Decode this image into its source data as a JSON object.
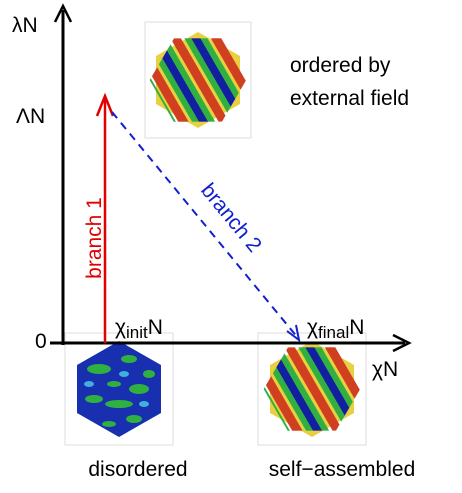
{
  "axes": {
    "y_label": "λN",
    "x_label": "χN",
    "origin": "0",
    "lambda_mark": "ΛN"
  },
  "points": {
    "init": {
      "symbol": "χ",
      "subscript": "init",
      "suffix": "N"
    },
    "final": {
      "symbol": "χ",
      "subscript": "final",
      "suffix": "N"
    }
  },
  "branches": [
    "branch 1",
    "branch 2"
  ],
  "states": {
    "ordered": [
      "ordered by",
      "external field"
    ],
    "disordered": "disordered",
    "self_assembled": "self−assembled"
  }
}
